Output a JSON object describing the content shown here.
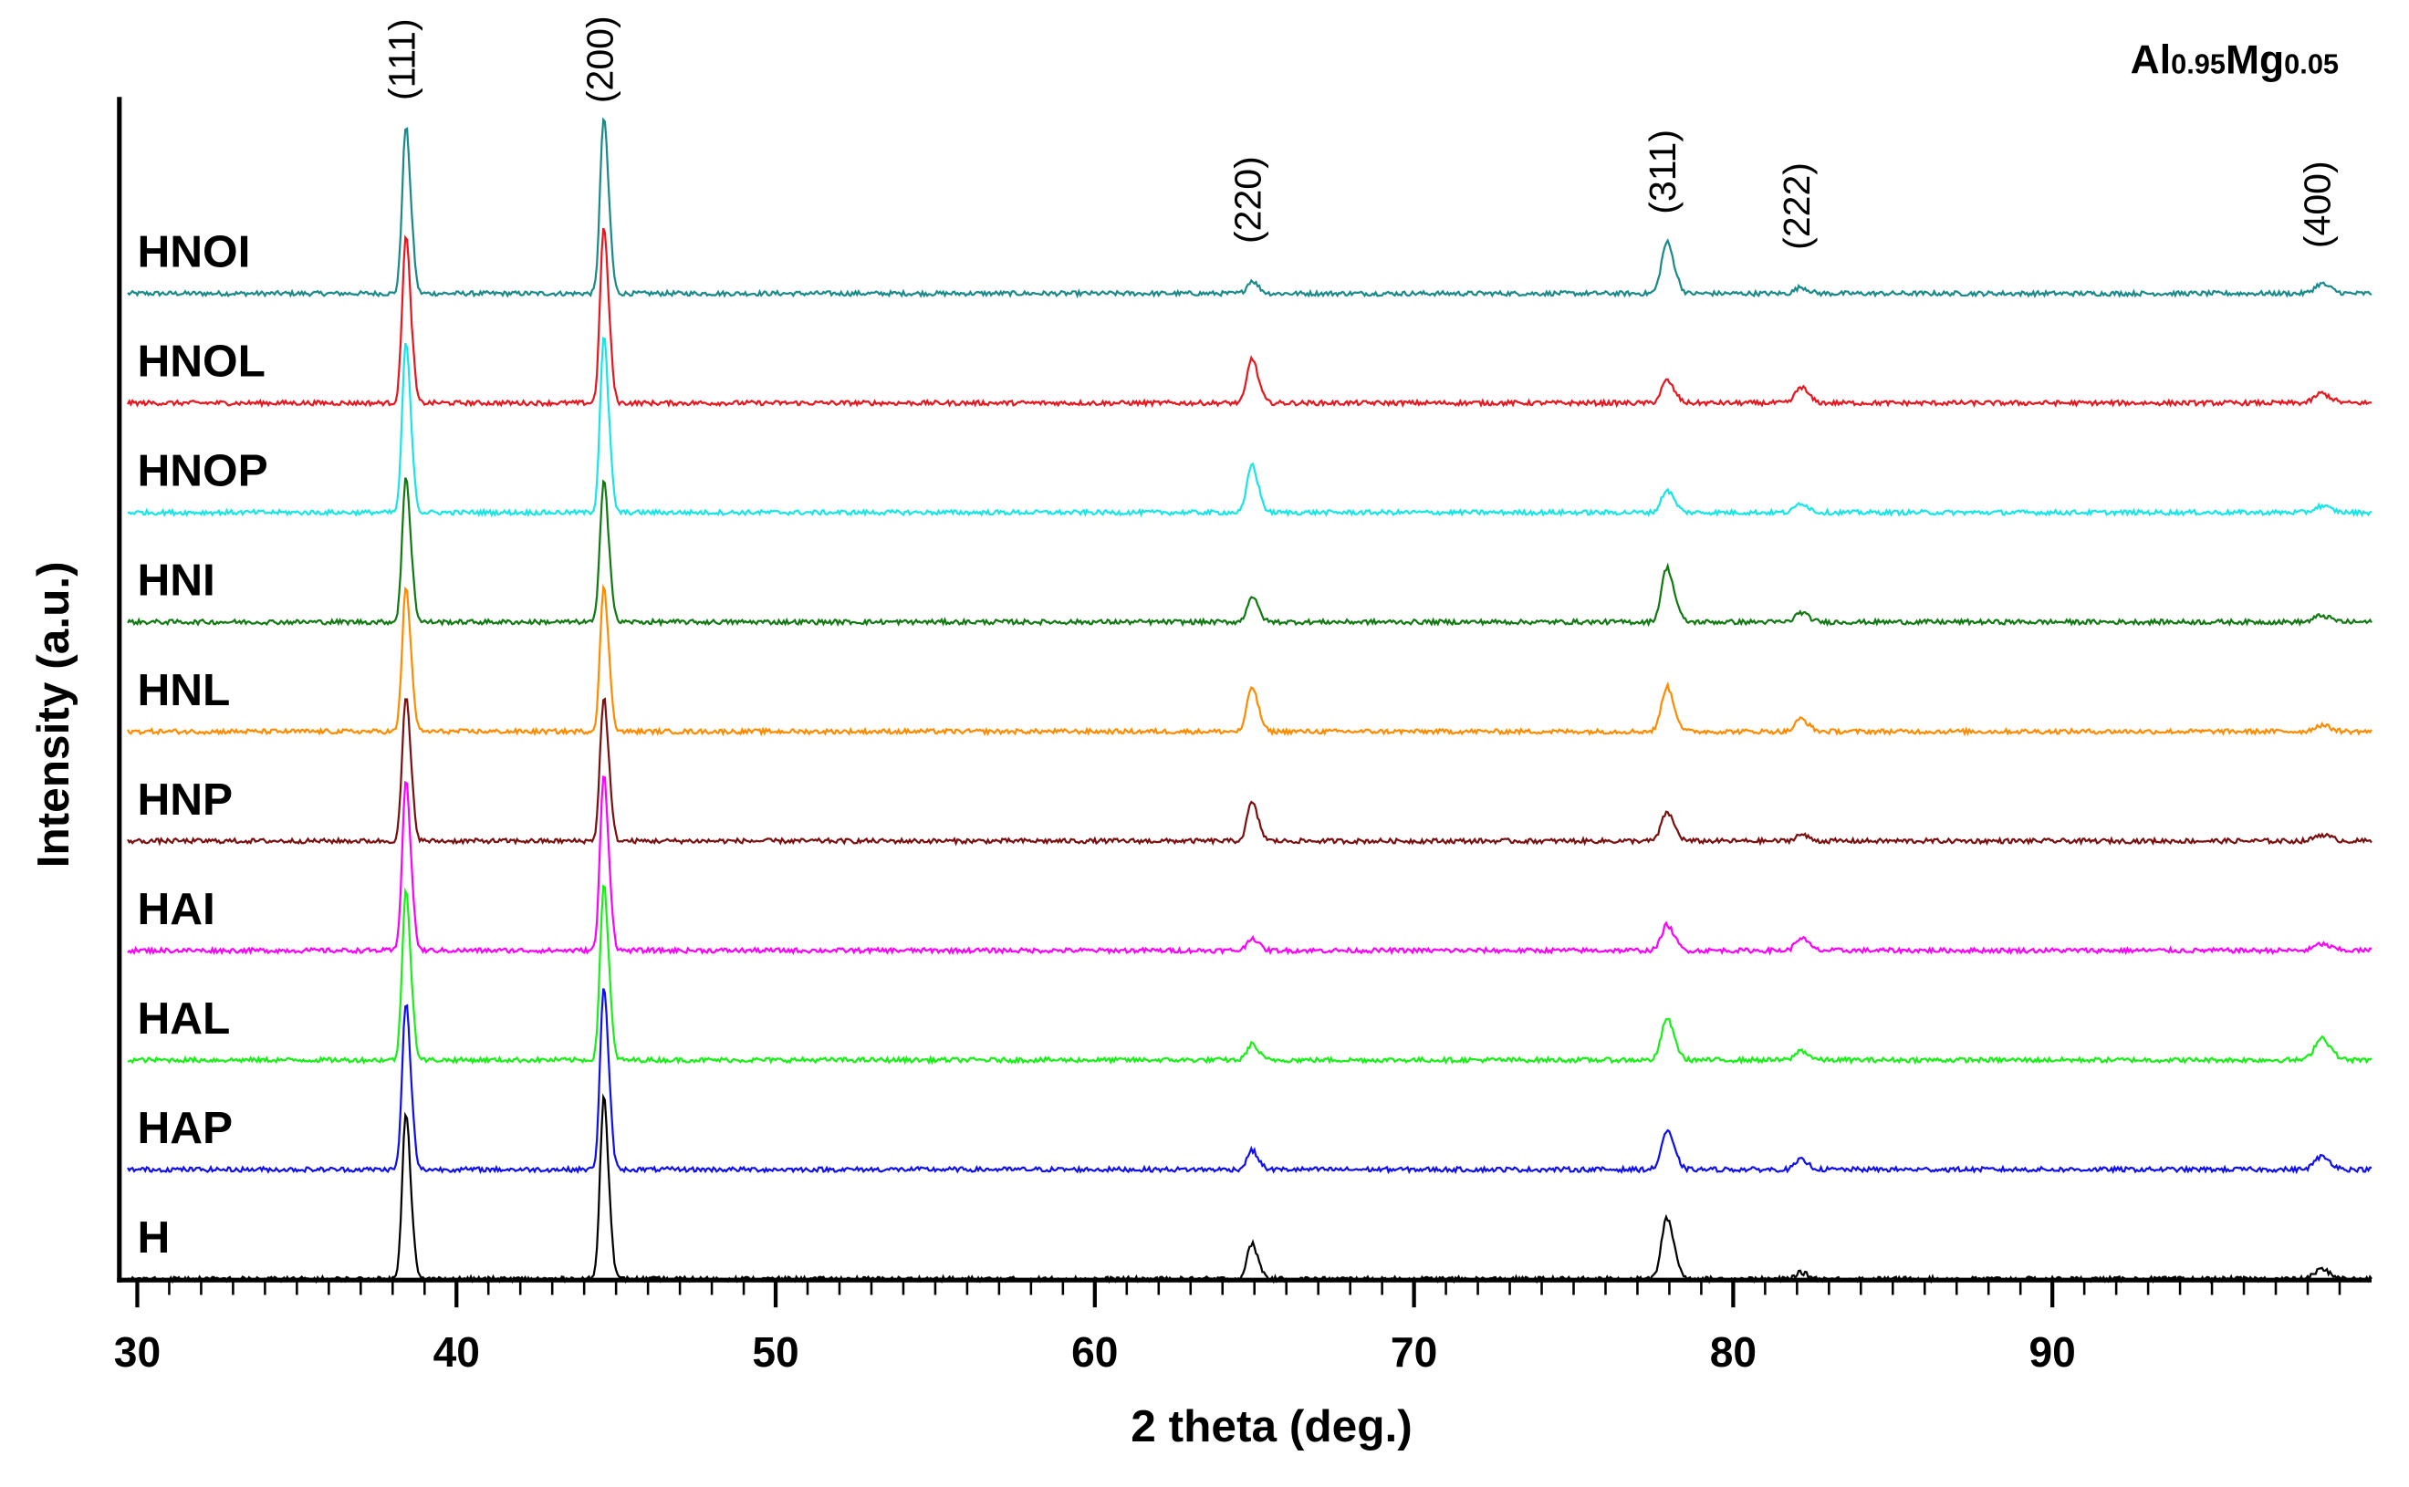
{
  "chart_data": {
    "type": "line",
    "title": "Al0.95Mg0.05",
    "title_parts": {
      "el1": "Al",
      "sub1": "0.95",
      "el2": "Mg",
      "sub2": "0.05"
    },
    "xlabel": "2 theta (deg.)",
    "ylabel": "Intensity (a.u.)",
    "xlim": [
      29.3,
      100
    ],
    "xticks": [
      30,
      40,
      50,
      60,
      70,
      80,
      90
    ],
    "xtick_labels": [
      "30",
      "40",
      "50",
      "60",
      "70",
      "80",
      "90"
    ],
    "grid": false,
    "peak_labels": [
      {
        "label": "(111)",
        "x": 38.4
      },
      {
        "label": "(200)",
        "x": 44.6
      },
      {
        "label": "(220)",
        "x": 64.9
      },
      {
        "label": "(311)",
        "x": 77.9
      },
      {
        "label": "(222)",
        "x": 82.1
      },
      {
        "label": "(400)",
        "x": 98.4
      }
    ],
    "peak_positions": [
      38.4,
      44.6,
      64.9,
      77.9,
      82.1,
      98.4
    ],
    "series": [
      {
        "name": "HNOI",
        "color": "#1a8a8a",
        "peaks": [
          52,
          55,
          4,
          16,
          2,
          3
        ]
      },
      {
        "name": "HNOL",
        "color": "#e8171f",
        "peaks": [
          52,
          55,
          14,
          7,
          5,
          3
        ]
      },
      {
        "name": "HNOP",
        "color": "#18e6e6",
        "peaks": [
          53,
          55,
          15,
          7,
          3,
          2
        ]
      },
      {
        "name": "HNI",
        "color": "#127a12",
        "peaks": [
          45,
          45,
          8,
          17,
          3,
          2
        ]
      },
      {
        "name": "HNL",
        "color": "#ff8c00",
        "peaks": [
          45,
          45,
          14,
          14,
          4,
          2
        ]
      },
      {
        "name": "HNP",
        "color": "#7a1010",
        "peaks": [
          45,
          45,
          12,
          9,
          2,
          2
        ]
      },
      {
        "name": "HAI",
        "color": "#ff00ff",
        "peaks": [
          53,
          55,
          4,
          8,
          4,
          2
        ]
      },
      {
        "name": "HAL",
        "color": "#18f018",
        "peaks": [
          53,
          55,
          5,
          13,
          3,
          7
        ]
      },
      {
        "name": "HAP",
        "color": "#1010ee",
        "peaks": [
          52,
          57,
          6,
          12,
          3,
          4
        ]
      },
      {
        "name": "H",
        "color": "#000000",
        "peaks": [
          52,
          57,
          11,
          19,
          2,
          3
        ]
      }
    ]
  }
}
